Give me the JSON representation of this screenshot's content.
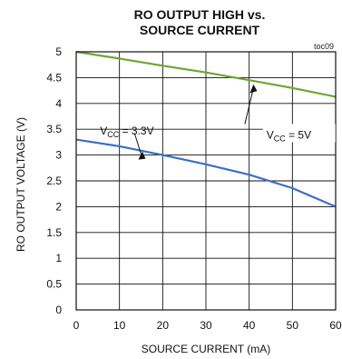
{
  "chart_data": {
    "type": "line",
    "title_line1": "RO OUTPUT HIGH vs.",
    "title_line2": "SOURCE CURRENT",
    "tag": "toc09",
    "xlabel": "SOURCE CURRENT (mA)",
    "ylabel": "RO OUTPUT VOLTAGE (V)",
    "xlim": [
      0,
      60
    ],
    "ylim": [
      0,
      5
    ],
    "xticks": [
      0,
      10,
      20,
      30,
      40,
      50,
      60
    ],
    "yticks": [
      0,
      0.5,
      1,
      1.5,
      2,
      2.5,
      3,
      3.5,
      4,
      4.5,
      5
    ],
    "grid": true,
    "series": [
      {
        "label_main": "V",
        "label_sub": "CC",
        "label_tail": " = 5V",
        "color": "#6aa832",
        "x": [
          0,
          10,
          20,
          30,
          40,
          50,
          60
        ],
        "y": [
          5.0,
          4.87,
          4.73,
          4.6,
          4.45,
          4.3,
          4.13
        ]
      },
      {
        "label_main": "V",
        "label_sub": "CC",
        "label_tail": " = 3.3V",
        "color": "#3b6fc4",
        "x": [
          0,
          10,
          20,
          30,
          40,
          50,
          60
        ],
        "y": [
          3.3,
          3.17,
          3.0,
          2.82,
          2.62,
          2.36,
          2.0
        ]
      }
    ]
  }
}
